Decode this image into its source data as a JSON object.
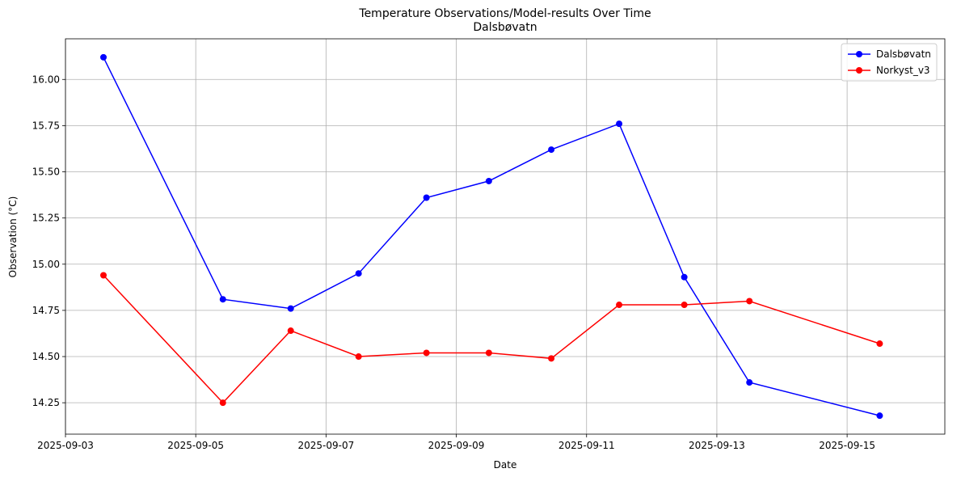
{
  "chart_data": {
    "type": "line",
    "title": "Temperature Observations/Model-results Over Time",
    "subtitle": "Dalsbøvatn",
    "xlabel": "Date",
    "ylabel": "Observation (°C)",
    "grid": true,
    "legend_position": "top-right",
    "xlim": [
      "2025-09-03T00:00",
      "2025-09-16T12:00"
    ],
    "ylim": [
      14.08,
      16.22
    ],
    "x_ticks": [
      "2025-09-03",
      "2025-09-05",
      "2025-09-07",
      "2025-09-09",
      "2025-09-11",
      "2025-09-13",
      "2025-09-15"
    ],
    "y_ticks": [
      "14.25",
      "14.50",
      "14.75",
      "15.00",
      "15.25",
      "15.50",
      "15.75",
      "16.00"
    ],
    "series": [
      {
        "name": "Dalsbøvatn",
        "color": "#0000ff",
        "marker": "circle",
        "x": [
          "2025-09-03T14:00",
          "2025-09-05T10:00",
          "2025-09-06T11:00",
          "2025-09-07T12:00",
          "2025-09-08T13:00",
          "2025-09-09T12:00",
          "2025-09-10T11:00",
          "2025-09-11T12:00",
          "2025-09-12T12:00",
          "2025-09-13T12:00",
          "2025-09-15T12:00"
        ],
        "values": [
          16.12,
          14.81,
          14.76,
          14.95,
          15.36,
          15.45,
          15.62,
          15.76,
          14.93,
          14.36,
          14.18
        ]
      },
      {
        "name": "Norkyst_v3",
        "color": "#ff0000",
        "marker": "circle",
        "x": [
          "2025-09-03T14:00",
          "2025-09-05T10:00",
          "2025-09-06T11:00",
          "2025-09-07T12:00",
          "2025-09-08T13:00",
          "2025-09-09T12:00",
          "2025-09-10T11:00",
          "2025-09-11T12:00",
          "2025-09-12T12:00",
          "2025-09-13T12:00",
          "2025-09-15T12:00"
        ],
        "values": [
          14.94,
          14.25,
          14.64,
          14.5,
          14.52,
          14.52,
          14.49,
          14.78,
          14.78,
          14.8,
          14.57
        ]
      }
    ]
  }
}
